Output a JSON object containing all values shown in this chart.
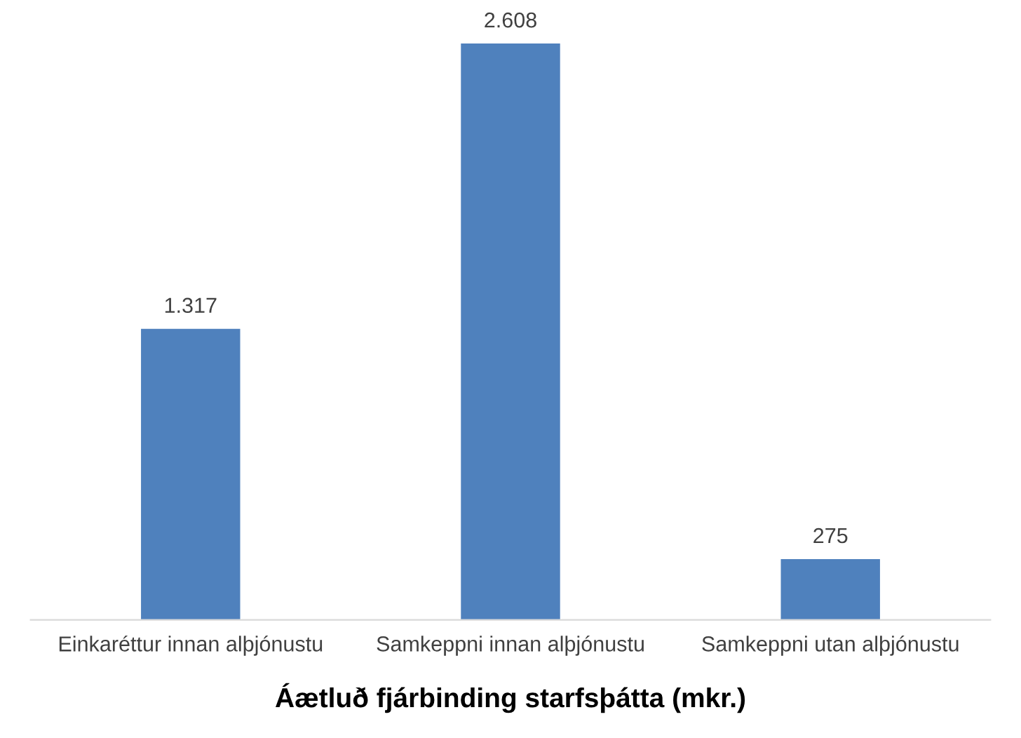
{
  "chart_data": {
    "type": "bar",
    "xlabel": "Áætluð fjárbinding starfsþátta (mkr.)",
    "categories": [
      "Einkaréttur innan alþjónustu",
      "Samkeppni innan alþjónustu",
      "Samkeppni utan alþjónustu"
    ],
    "values": [
      1317,
      2608,
      275
    ],
    "value_labels": [
      "1.317",
      "2.608",
      "275"
    ],
    "color": "#4f81bd"
  }
}
